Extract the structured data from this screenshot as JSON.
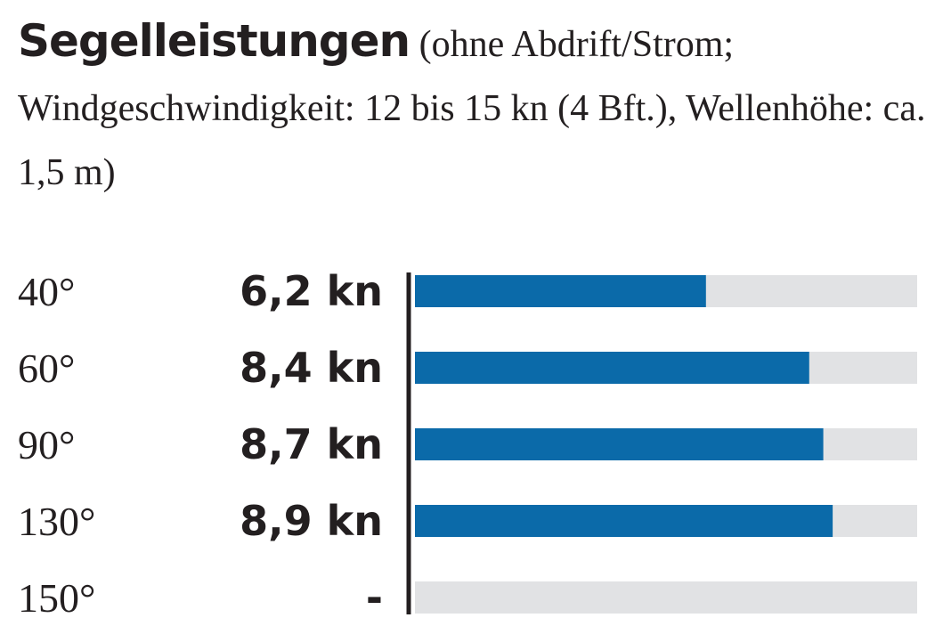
{
  "title": {
    "bold": "Segelleistungen",
    "rest": "(ohne Abdrift/Strom; Windgeschwindigkeit: 12 bis 15 kn (4 Bft.), Wellenhöhe: ca. 1,5 m)"
  },
  "colors": {
    "bar": "#0b6aa9",
    "track": "#e1e2e4",
    "axis": "#231f20",
    "text": "#231f20"
  },
  "chart_data": {
    "type": "bar",
    "orientation": "horizontal",
    "categories": [
      "40°",
      "60°",
      "90°",
      "130°",
      "150°"
    ],
    "values": [
      6.2,
      8.4,
      8.7,
      8.9,
      null
    ],
    "value_labels": [
      "6,2 kn",
      "8,4 kn",
      "8,7 kn",
      "8,9 kn",
      "-"
    ],
    "unit": "kn",
    "xlim": [
      0,
      10.7
    ],
    "grid": false
  }
}
